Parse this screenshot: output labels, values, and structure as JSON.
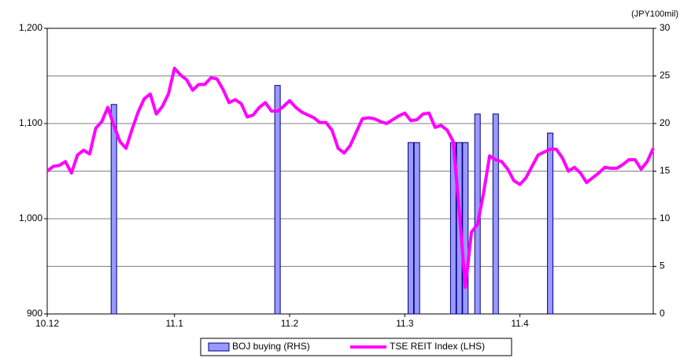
{
  "chart_data": {
    "type": "combo",
    "y2_unit_label": "(JPY100mil)",
    "categories": [
      "10.12",
      null,
      null,
      null,
      null,
      null,
      null,
      null,
      null,
      null,
      null,
      null,
      null,
      null,
      null,
      null,
      null,
      null,
      null,
      null,
      null,
      "11.1",
      null,
      null,
      null,
      null,
      null,
      null,
      null,
      null,
      null,
      null,
      null,
      null,
      null,
      null,
      null,
      null,
      null,
      null,
      "11.2",
      null,
      null,
      null,
      null,
      null,
      null,
      null,
      null,
      null,
      null,
      null,
      null,
      null,
      null,
      null,
      null,
      null,
      null,
      "11.3",
      null,
      null,
      null,
      null,
      null,
      null,
      null,
      null,
      null,
      null,
      null,
      null,
      null,
      null,
      null,
      null,
      null,
      null,
      "11.4",
      null,
      null,
      null,
      null,
      null,
      null,
      null,
      null,
      null,
      null,
      null,
      null,
      null,
      null,
      null,
      null,
      null,
      null,
      null,
      null,
      null,
      null
    ],
    "ylim": [
      900,
      1200
    ],
    "yticks": [
      900,
      {
        "value": 1000,
        "label": "1,000"
      },
      {
        "value": 1100,
        "label": "1,100"
      },
      {
        "value": 1200,
        "label": "1,200"
      }
    ],
    "y2lim": [
      0,
      30
    ],
    "y2ticks": [
      0,
      5,
      10,
      15,
      20,
      25,
      30
    ],
    "grid": true,
    "legend": "bottom",
    "series": [
      {
        "name": "BOJ buying (RHS)",
        "type": "bar",
        "axis": "y2",
        "color": "#9999ff",
        "values": [
          null,
          null,
          null,
          null,
          null,
          null,
          null,
          null,
          null,
          null,
          null,
          22,
          null,
          null,
          null,
          null,
          null,
          null,
          null,
          null,
          null,
          null,
          null,
          null,
          null,
          null,
          null,
          null,
          null,
          null,
          null,
          null,
          null,
          null,
          null,
          null,
          null,
          null,
          24,
          null,
          null,
          null,
          null,
          null,
          null,
          null,
          null,
          null,
          null,
          null,
          null,
          null,
          null,
          null,
          null,
          null,
          null,
          null,
          null,
          null,
          18,
          18,
          null,
          null,
          null,
          null,
          null,
          18,
          18,
          18,
          null,
          21,
          null,
          null,
          21,
          null,
          null,
          null,
          null,
          null,
          null,
          null,
          null,
          19,
          null,
          null,
          null,
          null,
          null,
          null,
          null,
          null,
          null,
          null,
          null,
          null,
          null,
          null,
          null,
          null,
          null
        ]
      },
      {
        "name": "TSE REIT Index (LHS)",
        "type": "line",
        "color": "#ff00ff",
        "values": [
          1050,
          1055,
          1056,
          1060,
          1048,
          1067,
          1072,
          1068,
          1095,
          1102,
          1117,
          1098,
          1081,
          1074,
          1094,
          1112,
          1126,
          1131,
          1110,
          1118,
          1131,
          1158,
          1151,
          1146,
          1135,
          1141,
          1141,
          1148,
          1147,
          1136,
          1122,
          1125,
          1121,
          1107,
          1109,
          1117,
          1122,
          1113,
          1113,
          1118,
          1124,
          1117,
          1112,
          1109,
          1106,
          1101,
          1101,
          1093,
          1074,
          1069,
          1077,
          1091,
          1105,
          1106,
          1105,
          1102,
          1100,
          1104,
          1108,
          1111,
          1103,
          1104,
          1110,
          1111,
          1096,
          1098,
          1093,
          1081,
          1007,
          928,
          986,
          994,
          1027,
          1066,
          1062,
          1060,
          1052,
          1040,
          1036,
          1043,
          1055,
          1067,
          1070,
          1073,
          1073,
          1064,
          1050,
          1054,
          1048,
          1038,
          1043,
          1048,
          1054,
          1053,
          1053,
          1057,
          1062,
          1062,
          1052,
          1060,
          1074
        ]
      }
    ]
  }
}
